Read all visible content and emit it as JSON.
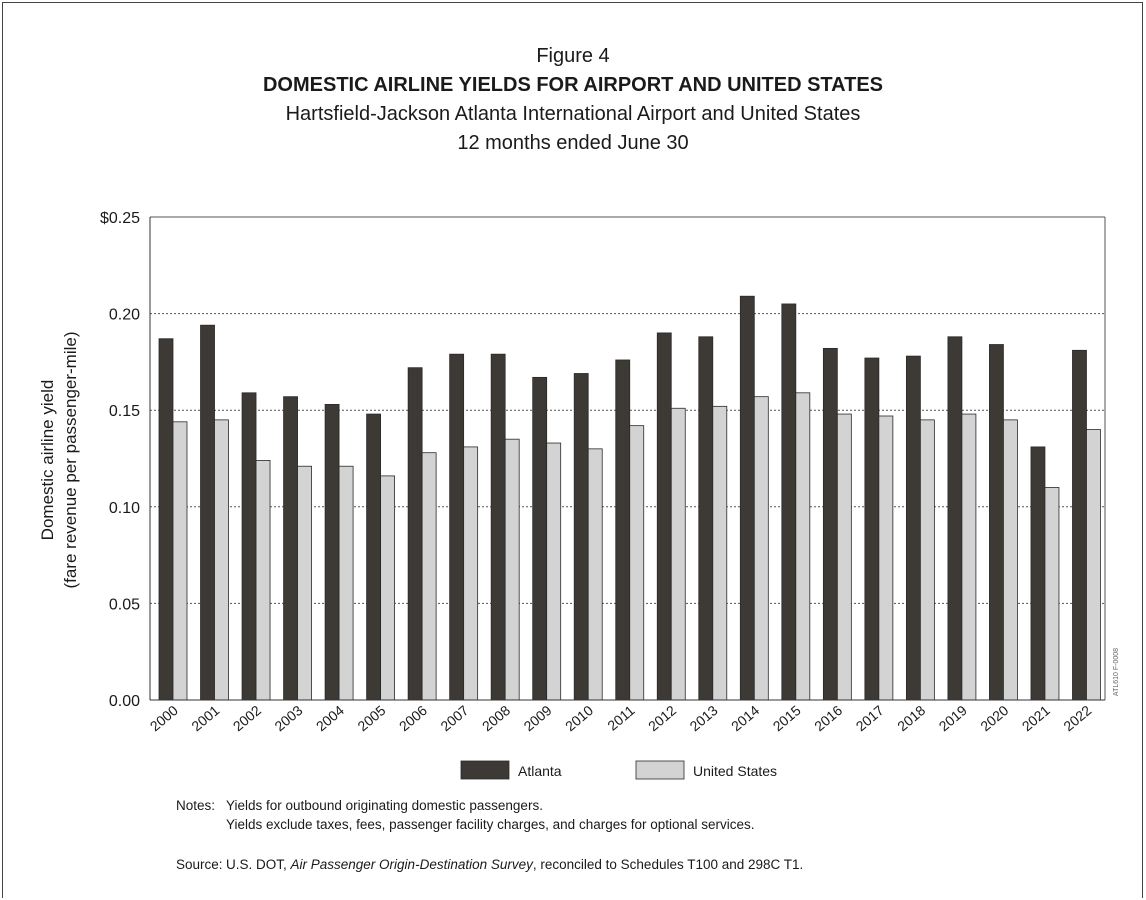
{
  "figure_label": "Figure 4",
  "title": "DOMESTIC AIRLINE YIELDS FOR AIRPORT AND UNITED STATES",
  "subtitle": "Hartsfield-Jackson Atlanta International Airport and United States",
  "subtitle2": "12 months ended June 30",
  "notes": {
    "label": "Notes:",
    "line1": "Yields for outbound originating domestic passengers.",
    "line2": "Yields exclude taxes, fees, passenger facility charges, and charges for optional services."
  },
  "source": {
    "label": "Source:",
    "prefix": "U.S. DOT, ",
    "italic": "Air Passenger Origin-Destination Survey",
    "suffix": ", reconciled to Schedules T100 and 298C T1."
  },
  "watermark": "ATL610 F-0008",
  "colors": {
    "atlanta": "#3d3935",
    "united_states": "#d3d3d3",
    "bar_stroke": "#2a2a2a"
  },
  "chart_data": {
    "type": "bar",
    "ylabel_line1": "Domestic airline yield",
    "ylabel_line2": "(fare revenue per passenger-mile)",
    "xlabel": "",
    "ylim": [
      0,
      0.25
    ],
    "yticks": [
      0,
      0.05,
      0.1,
      0.15,
      0.2,
      0.25
    ],
    "ytick_labels": [
      "0.00",
      "0.05",
      "0.10",
      "0.15",
      "0.20",
      "$0.25"
    ],
    "grid": "horizontal dotted",
    "legend_position": "bottom",
    "categories": [
      "2000",
      "2001",
      "2002",
      "2003",
      "2004",
      "2005",
      "2006",
      "2007",
      "2008",
      "2009",
      "2010",
      "2011",
      "2012",
      "2013",
      "2014",
      "2015",
      "2016",
      "2017",
      "2018",
      "2019",
      "2020",
      "2021",
      "2022"
    ],
    "series": [
      {
        "name": "Atlanta",
        "values": [
          0.187,
          0.194,
          0.159,
          0.157,
          0.153,
          0.148,
          0.172,
          0.179,
          0.179,
          0.167,
          0.169,
          0.176,
          0.19,
          0.188,
          0.209,
          0.205,
          0.182,
          0.177,
          0.178,
          0.188,
          0.184,
          0.131,
          0.181
        ]
      },
      {
        "name": "United States",
        "values": [
          0.144,
          0.145,
          0.124,
          0.121,
          0.121,
          0.116,
          0.128,
          0.131,
          0.135,
          0.133,
          0.13,
          0.142,
          0.151,
          0.152,
          0.157,
          0.159,
          0.148,
          0.147,
          0.145,
          0.148,
          0.145,
          0.11,
          0.14
        ]
      }
    ]
  }
}
